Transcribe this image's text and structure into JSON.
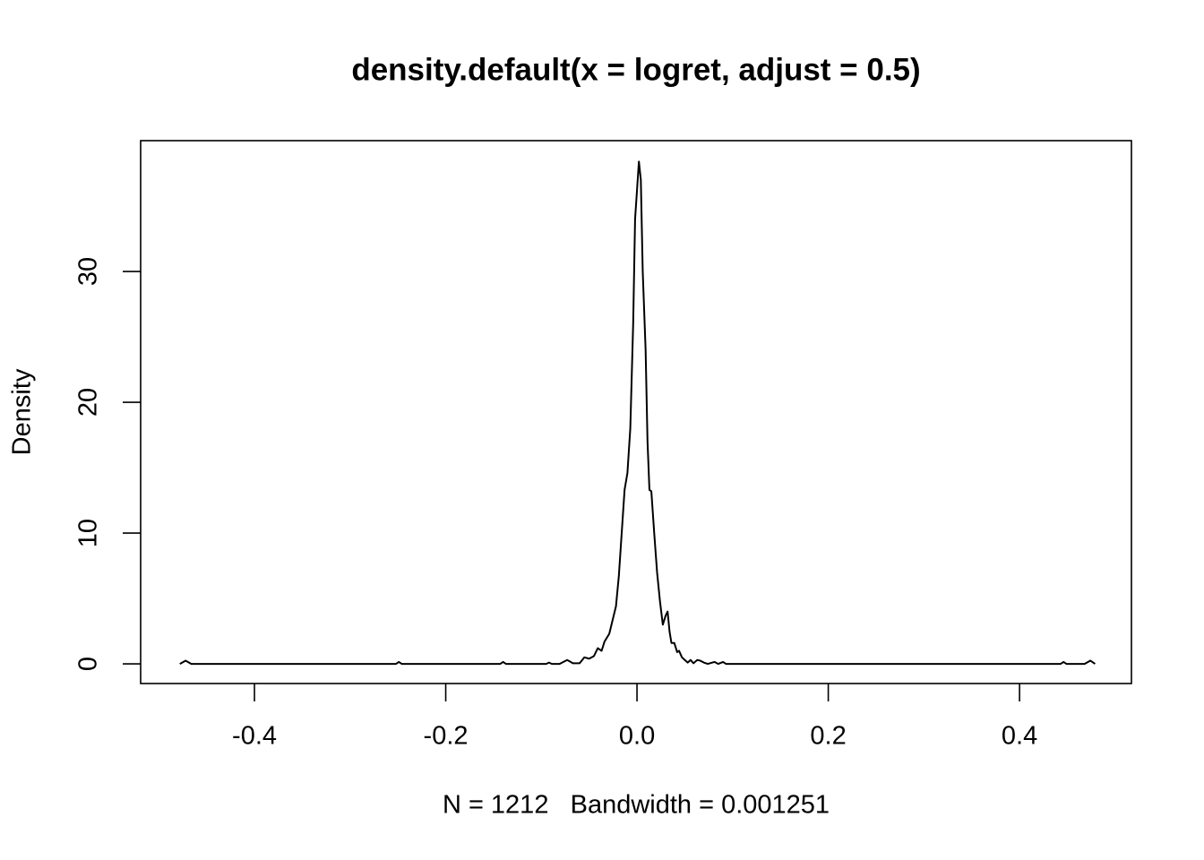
{
  "chart_data": {
    "type": "line",
    "title": "density.default(x = logret, adjust = 0.5)",
    "x_label": "N = 1212   Bandwidth = 0.001251",
    "y_label": "Density",
    "color": "#000000",
    "x": [
      -0.478,
      -0.472,
      -0.466,
      -0.252,
      -0.249,
      -0.246,
      -0.143,
      -0.14,
      -0.137,
      -0.095,
      -0.092,
      -0.089,
      -0.081,
      -0.073,
      -0.067,
      -0.06,
      -0.055,
      -0.05,
      -0.045,
      -0.041,
      -0.037,
      -0.034,
      -0.029,
      -0.025,
      -0.022,
      -0.019,
      -0.016,
      -0.013,
      -0.01,
      -0.007,
      -0.004,
      -0.002,
      0.002,
      0.004,
      0.006,
      0.009,
      0.011,
      0.013,
      0.015,
      0.018,
      0.021,
      0.024,
      0.027,
      0.03,
      0.032,
      0.034,
      0.036,
      0.039,
      0.042,
      0.044,
      0.047,
      0.05,
      0.053,
      0.056,
      0.059,
      0.063,
      0.066,
      0.07,
      0.074,
      0.081,
      0.085,
      0.09,
      0.093,
      0.443,
      0.446,
      0.449,
      0.468,
      0.474,
      0.479
    ],
    "values": [
      0,
      0.25,
      0,
      0,
      0.15,
      0,
      0,
      0.15,
      0,
      0,
      0.1,
      0,
      0,
      0.3,
      0.05,
      0.05,
      0.5,
      0.4,
      0.6,
      1.2,
      1.0,
      1.7,
      2.3,
      3.5,
      4.4,
      6.7,
      10,
      13.3,
      14.6,
      18,
      26,
      34,
      38.4,
      37,
      30,
      24,
      17,
      13.3,
      13.2,
      10,
      7,
      4.8,
      3.0,
      3.7,
      4.0,
      2.5,
      1.6,
      1.6,
      0.9,
      1.0,
      0.5,
      0.3,
      0.1,
      0.3,
      0.05,
      0.3,
      0.25,
      0.1,
      0,
      0.15,
      0,
      0.15,
      0,
      0,
      0.15,
      0,
      0,
      0.25,
      0
    ],
    "xlim": [
      -0.519,
      0.517
    ],
    "ylim": [
      -1.5,
      40
    ],
    "xticks": [
      -0.4,
      -0.2,
      {
        "value": 0,
        "label": "0.0"
      },
      0.2,
      0.4
    ],
    "yticks": [
      0,
      10,
      20,
      30
    ]
  }
}
